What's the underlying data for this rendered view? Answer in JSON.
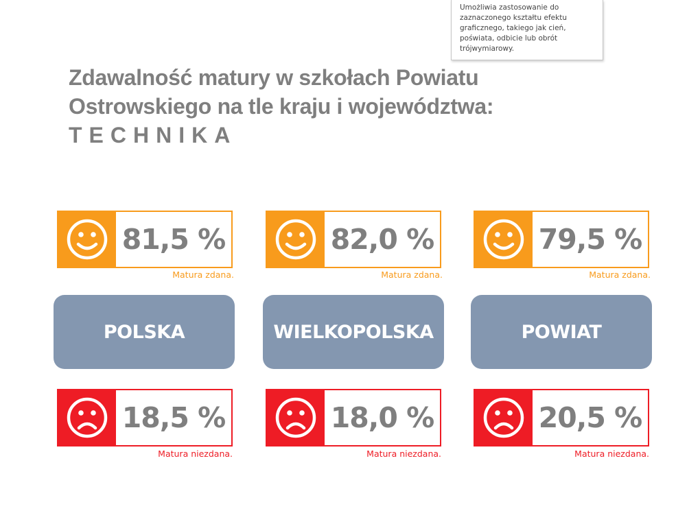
{
  "tooltip": {
    "text": "Umożliwia zastosowanie do zaznaczonego kształtu efektu graficznego, takiego jak cień, poświata, odbicie lub obrót trójwymiarowy."
  },
  "title": {
    "line1": "Zdawalność matury w szkołach Powiatu",
    "line2": "Ostrowskiego na tle kraju i województwa:",
    "line3": "TECHNIKA"
  },
  "captions": {
    "passed": "Matura zdana.",
    "failed": "Matura niezdana."
  },
  "colors": {
    "passed": "#f89b1c",
    "failed": "#ee1c25",
    "region_button": "#8497b0",
    "value_text": "#7f7f7f"
  },
  "icons": {
    "passed": "smiley-face-icon",
    "failed": "sad-face-icon"
  },
  "regions": [
    {
      "name": "POLSKA",
      "passed": "81,5 %",
      "failed": "18,5 %"
    },
    {
      "name": "WIELKOPOLSKA",
      "passed": "82,0 %",
      "failed": "18,0 %"
    },
    {
      "name": "POWIAT",
      "passed": "79,5 %",
      "failed": "20,5 %"
    }
  ]
}
